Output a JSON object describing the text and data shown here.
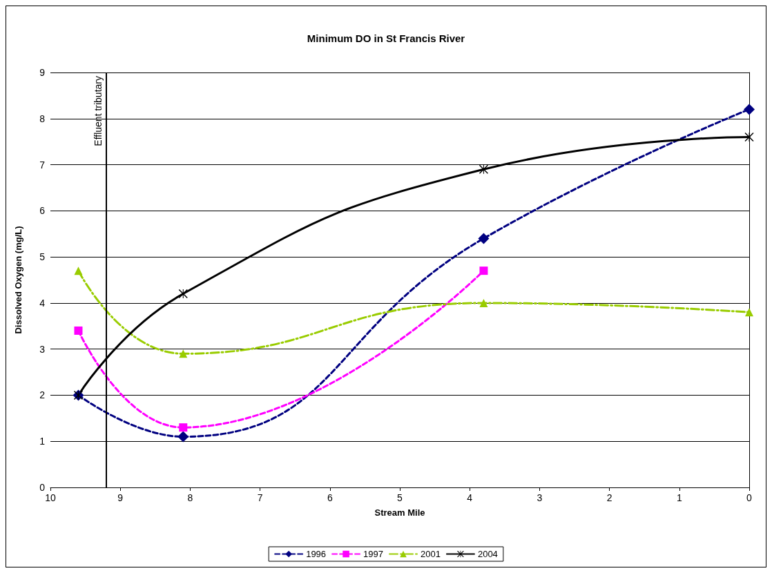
{
  "chart_data": {
    "type": "line",
    "title": "Minimum DO in St Francis River",
    "xlabel": "Stream Mile",
    "ylabel": "Dissolved Oxygen (mg/L)",
    "xlim": [
      10,
      0
    ],
    "xticks": [
      10,
      9,
      8,
      7,
      6,
      5,
      4,
      3,
      2,
      1,
      0
    ],
    "ylim": [
      0,
      9
    ],
    "yticks": [
      0,
      1,
      2,
      3,
      4,
      5,
      6,
      7,
      8,
      9
    ],
    "grid": "y",
    "legend": "bottom",
    "series": [
      {
        "name": "1996",
        "color": "#000080",
        "x": [
          9.6,
          8.1,
          3.8,
          0
        ],
        "values": [
          2.0,
          1.1,
          5.4,
          8.2
        ],
        "marker": "diamond",
        "line_style": "dashed"
      },
      {
        "name": "1997",
        "color": "#ff00ff",
        "x": [
          9.6,
          8.1,
          3.8
        ],
        "values": [
          3.4,
          1.3,
          4.7
        ],
        "marker": "square",
        "line_style": "dashed"
      },
      {
        "name": "2001",
        "color": "#99cc00",
        "x": [
          9.6,
          8.1,
          3.8,
          0
        ],
        "values": [
          4.7,
          2.9,
          4.0,
          3.8
        ],
        "marker": "triangle",
        "line_style": "dashdot"
      },
      {
        "name": "2004",
        "color": "#000000",
        "x": [
          9.6,
          8.1,
          3.8,
          0
        ],
        "values": [
          2.0,
          4.2,
          6.9,
          7.6
        ],
        "marker": "cross",
        "line_style": "solid"
      }
    ],
    "ref_lines": [
      {
        "axis": "x",
        "value": 9.2,
        "label": "Effluent tributary",
        "color": "#000000"
      }
    ]
  }
}
